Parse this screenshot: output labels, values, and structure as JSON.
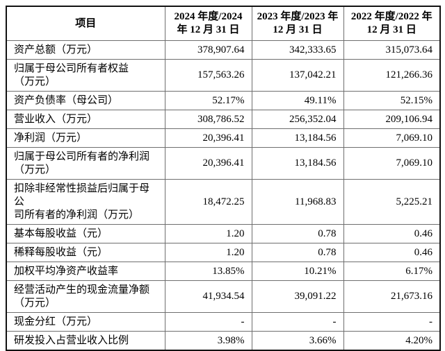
{
  "table": {
    "header": {
      "item_label": "项目",
      "col_2024_line1": "2024 年度/2024",
      "col_2024_line2": "年 12 月 31 日",
      "col_2023_line1": "2023 年度/2023 年",
      "col_2023_line2": "12 月 31 日",
      "col_2022_line1": "2022 年度/2022 年",
      "col_2022_line2": "12 月 31 日"
    },
    "rows": [
      {
        "label": "资产总额（万元）",
        "values": [
          "378,907.64",
          "342,333.65",
          "315,073.64"
        ]
      },
      {
        "label": "归属于母公司所有者权益\n（万元）",
        "values": [
          "157,563.26",
          "137,042.21",
          "121,266.36"
        ]
      },
      {
        "label": "资产负债率（母公司）",
        "values": [
          "52.17%",
          "49.11%",
          "52.15%"
        ]
      },
      {
        "label": "营业收入（万元）",
        "values": [
          "308,786.52",
          "256,352.04",
          "209,106.94"
        ]
      },
      {
        "label": "净利润（万元）",
        "values": [
          "20,396.41",
          "13,184.56",
          "7,069.10"
        ]
      },
      {
        "label": "归属于母公司所有者的净利润\n（万元）",
        "values": [
          "20,396.41",
          "13,184.56",
          "7,069.10"
        ]
      },
      {
        "label": "扣除非经常性损益后归属于母公\n司所有者的净利润（万元）",
        "values": [
          "18,472.25",
          "11,968.83",
          "5,225.21"
        ]
      },
      {
        "label": "基本每股收益（元）",
        "values": [
          "1.20",
          "0.78",
          "0.46"
        ]
      },
      {
        "label": "稀释每股收益（元）",
        "values": [
          "1.20",
          "0.78",
          "0.46"
        ]
      },
      {
        "label": "加权平均净资产收益率",
        "values": [
          "13.85%",
          "10.21%",
          "6.17%"
        ]
      },
      {
        "label": "经营活动产生的现金流量净额\n（万元）",
        "values": [
          "41,934.54",
          "39,091.22",
          "21,673.16"
        ]
      },
      {
        "label": "现金分红（万元）",
        "values": [
          "-",
          "-",
          "-"
        ]
      },
      {
        "label": "研发投入占营业收入比例",
        "values": [
          "3.98%",
          "3.66%",
          "4.20%"
        ]
      }
    ]
  }
}
